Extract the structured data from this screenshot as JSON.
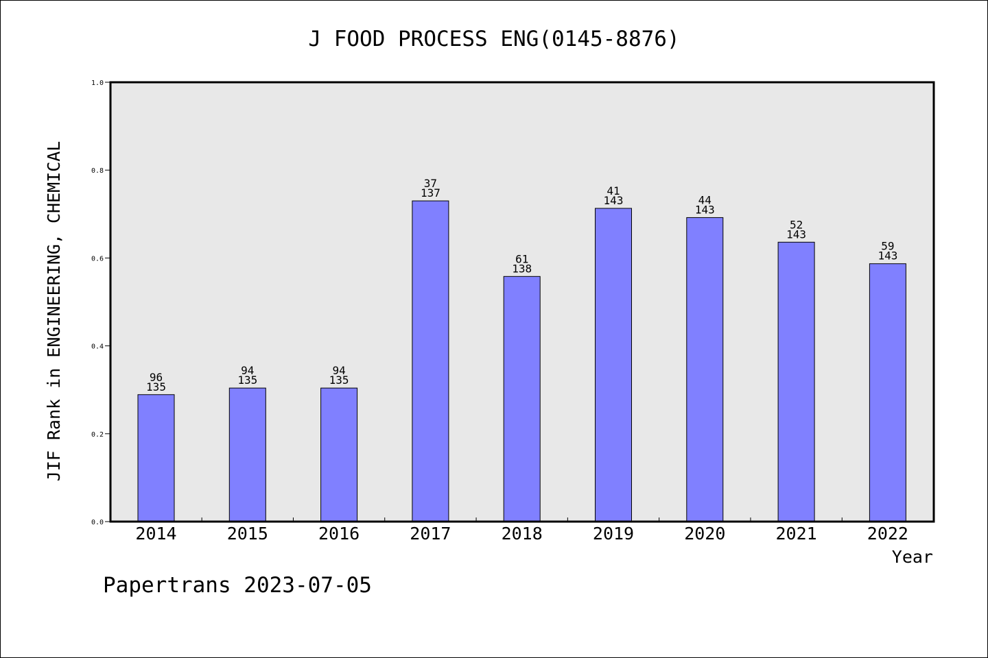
{
  "chart_data": {
    "type": "bar",
    "title": "J FOOD PROCESS ENG(0145-8876)",
    "xlabel": "Year",
    "ylabel": "JIF Rank in ENGINEERING, CHEMICAL",
    "categories": [
      "2014",
      "2015",
      "2016",
      "2017",
      "2018",
      "2019",
      "2020",
      "2021",
      "2022"
    ],
    "values": [
      0.289,
      0.304,
      0.304,
      0.73,
      0.558,
      0.713,
      0.692,
      0.636,
      0.587
    ],
    "bar_labels": [
      {
        "rank": "96",
        "total": "135"
      },
      {
        "rank": "94",
        "total": "135"
      },
      {
        "rank": "94",
        "total": "135"
      },
      {
        "rank": "37",
        "total": "137"
      },
      {
        "rank": "61",
        "total": "138"
      },
      {
        "rank": "41",
        "total": "143"
      },
      {
        "rank": "44",
        "total": "143"
      },
      {
        "rank": "52",
        "total": "143"
      },
      {
        "rank": "59",
        "total": "143"
      }
    ],
    "ylim": [
      0,
      1.0
    ],
    "yticks": [
      "0.0",
      "0.2",
      "0.4",
      "0.6",
      "0.8",
      "1.0"
    ],
    "grid": false,
    "colors": {
      "bar_fill": "#8080ff",
      "plot_background": "#e8e8e8"
    }
  },
  "footer": {
    "text": "Papertrans 2023-07-05"
  }
}
